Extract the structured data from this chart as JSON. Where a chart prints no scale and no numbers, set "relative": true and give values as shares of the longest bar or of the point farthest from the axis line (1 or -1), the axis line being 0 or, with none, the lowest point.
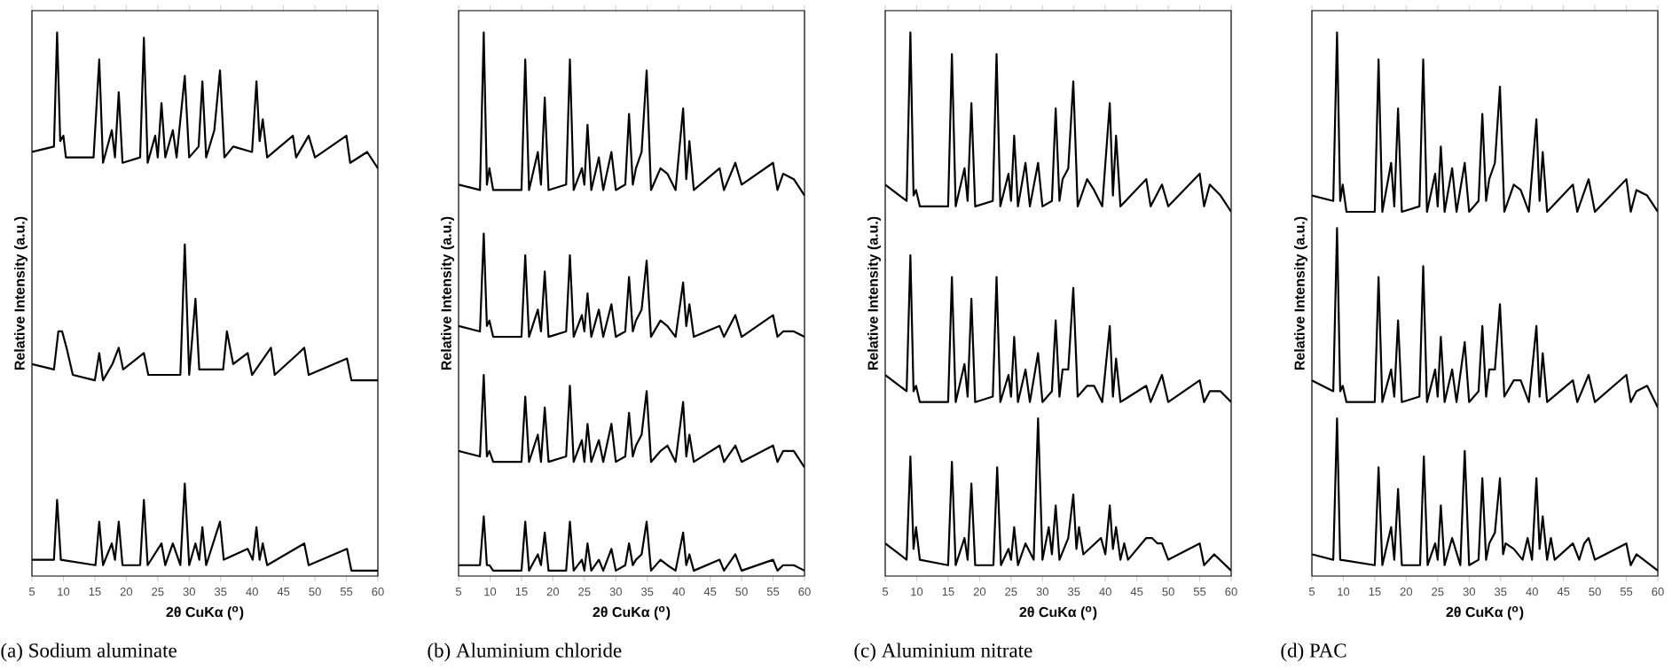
{
  "chart_data": [
    {
      "type": "line",
      "title": "(a) Sodium aluminate",
      "xlabel": "2θ CuKα ($^{o}$)",
      "ylabel": "Relative Intensity (a.u.)",
      "relative": true,
      "xlim": [
        5,
        60
      ],
      "xticks": [
        5,
        10,
        15,
        20,
        25,
        30,
        35,
        40,
        45,
        50,
        55,
        60
      ],
      "marker": "none",
      "line_style": "solid",
      "series": [
        {
          "color": "#000000",
          "x": [
            5,
            8.5,
            9.0,
            9.5,
            10.0,
            10.4,
            14.8,
            15.7,
            16.3,
            17.7,
            18.2,
            18.8,
            19.4,
            22.2,
            22.8,
            23.4,
            24.6,
            25.0,
            25.6,
            26.2,
            27.4,
            28.0,
            29.3,
            30.0,
            31.5,
            32.1,
            32.7,
            34.0,
            34.9,
            35.6,
            37.0,
            40.0,
            40.7,
            41.2,
            41.7,
            42.4,
            46.5,
            47.0,
            49.0,
            50,
            55.0,
            55.6,
            58.3,
            60
          ],
          "values": [
            0.78,
            0.79,
            1.0,
            0.8,
            0.81,
            0.77,
            0.77,
            0.95,
            0.76,
            0.82,
            0.77,
            0.89,
            0.76,
            0.77,
            0.99,
            0.76,
            0.81,
            0.77,
            0.87,
            0.77,
            0.82,
            0.77,
            0.92,
            0.77,
            0.79,
            0.91,
            0.77,
            0.82,
            0.93,
            0.77,
            0.79,
            0.78,
            0.91,
            0.8,
            0.84,
            0.77,
            0.81,
            0.77,
            0.81,
            0.77,
            0.81,
            0.76,
            0.78,
            0.75
          ]
        },
        {
          "color": "#000000",
          "x": [
            5,
            8.5,
            9.2,
            9.8,
            10.5,
            11.5,
            15.0,
            15.7,
            16.3,
            17.8,
            18.8,
            19.5,
            22.8,
            23.5,
            28.6,
            29.3,
            30.0,
            31.0,
            31.6,
            35.4,
            36.0,
            37.0,
            39.3,
            40.0,
            43.0,
            43.6,
            47.4,
            48.3,
            49.0,
            55.1,
            55.8,
            60
          ],
          "values": [
            0.39,
            0.38,
            0.45,
            0.45,
            0.42,
            0.37,
            0.36,
            0.41,
            0.36,
            0.39,
            0.42,
            0.38,
            0.41,
            0.37,
            0.37,
            0.61,
            0.37,
            0.51,
            0.38,
            0.38,
            0.45,
            0.39,
            0.41,
            0.37,
            0.42,
            0.37,
            0.41,
            0.42,
            0.37,
            0.4,
            0.36,
            0.36
          ]
        },
        {
          "color": "#000000",
          "x": [
            5,
            8.5,
            9.0,
            9.6,
            15.1,
            15.7,
            16.3,
            17.7,
            18.2,
            18.8,
            19.4,
            22.2,
            22.8,
            23.4,
            25.6,
            26.2,
            27.4,
            28.6,
            29.3,
            30.0,
            31.0,
            31.6,
            32.1,
            32.7,
            34.9,
            35.5,
            39.3,
            40.1,
            40.7,
            41.2,
            41.7,
            42.4,
            48.3,
            49.0,
            55.1,
            55.8,
            60
          ],
          "values": [
            0.03,
            0.03,
            0.14,
            0.03,
            0.02,
            0.1,
            0.02,
            0.06,
            0.03,
            0.1,
            0.02,
            0.02,
            0.14,
            0.02,
            0.06,
            0.02,
            0.06,
            0.02,
            0.17,
            0.02,
            0.06,
            0.03,
            0.09,
            0.02,
            0.1,
            0.03,
            0.05,
            0.03,
            0.09,
            0.03,
            0.06,
            0.02,
            0.06,
            0.02,
            0.05,
            0.01,
            0.01
          ]
        }
      ]
    },
    {
      "type": "line",
      "title": "(b) Aluminium chloride",
      "xlabel": "2θ CuKα ($^{o}$)",
      "ylabel": "Relative Intensity (a.u.)",
      "relative": true,
      "xlim": [
        5,
        60
      ],
      "xticks": [
        5,
        10,
        15,
        20,
        25,
        30,
        35,
        40,
        45,
        50,
        55,
        60
      ],
      "marker": "none",
      "line_style": "solid",
      "x": [
        5,
        8.4,
        9.0,
        9.5,
        9.9,
        10.5,
        15.0,
        15.6,
        16.2,
        17.6,
        18.1,
        18.7,
        19.3,
        22.1,
        22.7,
        23.3,
        24.6,
        25.0,
        25.5,
        26.1,
        27.3,
        28.0,
        29.3,
        30.0,
        31.5,
        32.1,
        32.7,
        33.2,
        34.1,
        34.9,
        35.6,
        37.1,
        38.2,
        39.5,
        40.7,
        41.2,
        41.7,
        42.4,
        46.5,
        47.2,
        49.0,
        50.0,
        55.0,
        55.7,
        56.6,
        58.3,
        60
      ],
      "series": [
        {
          "color": "#000000",
          "values": [
            0.72,
            0.71,
            1.0,
            0.72,
            0.75,
            0.71,
            0.71,
            0.95,
            0.71,
            0.78,
            0.72,
            0.88,
            0.71,
            0.72,
            0.95,
            0.71,
            0.75,
            0.72,
            0.83,
            0.71,
            0.77,
            0.71,
            0.78,
            0.71,
            0.72,
            0.85,
            0.72,
            0.75,
            0.78,
            0.93,
            0.71,
            0.75,
            0.74,
            0.71,
            0.86,
            0.73,
            0.8,
            0.71,
            0.75,
            0.71,
            0.76,
            0.72,
            0.76,
            0.71,
            0.74,
            0.73,
            0.7
          ]
        },
        {
          "color": "#000000",
          "values": [
            0.46,
            0.45,
            0.63,
            0.46,
            0.47,
            0.44,
            0.44,
            0.59,
            0.44,
            0.49,
            0.45,
            0.56,
            0.44,
            0.45,
            0.59,
            0.44,
            0.48,
            0.45,
            0.52,
            0.44,
            0.49,
            0.44,
            0.5,
            0.44,
            0.45,
            0.55,
            0.45,
            0.47,
            0.49,
            0.58,
            0.44,
            0.47,
            0.46,
            0.44,
            0.54,
            0.46,
            0.5,
            0.44,
            0.46,
            0.44,
            0.48,
            0.44,
            0.48,
            0.44,
            0.45,
            0.45,
            0.44
          ]
        },
        {
          "color": "#000000",
          "values": [
            0.23,
            0.22,
            0.37,
            0.22,
            0.23,
            0.21,
            0.21,
            0.33,
            0.21,
            0.26,
            0.21,
            0.31,
            0.21,
            0.22,
            0.35,
            0.21,
            0.25,
            0.21,
            0.28,
            0.21,
            0.25,
            0.21,
            0.28,
            0.21,
            0.22,
            0.3,
            0.22,
            0.24,
            0.26,
            0.34,
            0.21,
            0.23,
            0.24,
            0.21,
            0.32,
            0.22,
            0.26,
            0.21,
            0.24,
            0.21,
            0.24,
            0.21,
            0.24,
            0.21,
            0.23,
            0.23,
            0.2
          ]
        },
        {
          "color": "#000000",
          "values": [
            0.02,
            0.02,
            0.11,
            0.02,
            0.02,
            0.01,
            0.01,
            0.1,
            0.01,
            0.04,
            0.02,
            0.08,
            0.01,
            0.01,
            0.1,
            0.01,
            0.03,
            0.01,
            0.06,
            0.01,
            0.03,
            0.01,
            0.05,
            0.01,
            0.02,
            0.06,
            0.02,
            0.03,
            0.04,
            0.1,
            0.01,
            0.03,
            0.02,
            0.01,
            0.08,
            0.02,
            0.04,
            0.01,
            0.03,
            0.01,
            0.04,
            0.01,
            0.03,
            0.01,
            0.02,
            0.02,
            0.01
          ]
        }
      ]
    },
    {
      "type": "line",
      "title": "(c) Aluminium nitrate",
      "xlabel": "2θ CuKα ($^{o}$)",
      "ylabel": "Relative Intensity (a.u.)",
      "relative": true,
      "xlim": [
        5,
        60
      ],
      "xticks": [
        5,
        10,
        15,
        20,
        25,
        30,
        35,
        40,
        45,
        50,
        55,
        60
      ],
      "marker": "none",
      "line_style": "solid",
      "x": [
        5,
        8.4,
        9.0,
        9.5,
        9.9,
        10.5,
        15.0,
        15.6,
        16.2,
        17.6,
        18.1,
        18.7,
        19.3,
        22.1,
        22.7,
        23.3,
        24.6,
        25.0,
        25.5,
        26.1,
        27.3,
        28.0,
        29.3,
        30.0,
        31.5,
        32.1,
        32.7,
        33.2,
        34.1,
        34.9,
        35.6,
        37.1,
        38.2,
        39.5,
        40.7,
        41.2,
        41.7,
        42.4,
        46.5,
        47.2,
        49.0,
        50.0,
        55.0,
        55.7,
        56.6,
        58.3,
        60
      ],
      "series": [
        {
          "color": "#000000",
          "values": [
            0.72,
            0.69,
            1.0,
            0.7,
            0.71,
            0.68,
            0.68,
            0.96,
            0.68,
            0.75,
            0.69,
            0.87,
            0.68,
            0.69,
            0.96,
            0.68,
            0.74,
            0.69,
            0.81,
            0.68,
            0.76,
            0.68,
            0.76,
            0.68,
            0.69,
            0.86,
            0.69,
            0.73,
            0.75,
            0.91,
            0.68,
            0.73,
            0.71,
            0.68,
            0.87,
            0.7,
            0.81,
            0.68,
            0.73,
            0.68,
            0.72,
            0.68,
            0.74,
            0.68,
            0.72,
            0.7,
            0.67
          ]
        },
        {
          "color": "#000000",
          "values": [
            0.37,
            0.34,
            0.59,
            0.34,
            0.35,
            0.32,
            0.32,
            0.55,
            0.32,
            0.39,
            0.33,
            0.51,
            0.32,
            0.33,
            0.55,
            0.32,
            0.37,
            0.33,
            0.44,
            0.32,
            0.38,
            0.32,
            0.41,
            0.32,
            0.34,
            0.47,
            0.33,
            0.38,
            0.38,
            0.53,
            0.33,
            0.35,
            0.35,
            0.32,
            0.46,
            0.33,
            0.4,
            0.32,
            0.35,
            0.32,
            0.37,
            0.32,
            0.36,
            0.32,
            0.34,
            0.34,
            0.32
          ]
        },
        {
          "color": "#000000",
          "x": [
            5,
            8.4,
            9.0,
            9.5,
            9.9,
            10.5,
            15.0,
            15.6,
            16.2,
            17.6,
            18.1,
            18.7,
            19.3,
            22.2,
            22.8,
            23.4,
            24.6,
            25.0,
            25.5,
            26.1,
            27.3,
            28.6,
            29.3,
            30.0,
            31.0,
            31.5,
            32.1,
            32.7,
            34.1,
            34.9,
            35.4,
            35.8,
            36.5,
            39.3,
            40.0,
            40.7,
            41.2,
            41.7,
            42.4,
            43.0,
            43.6,
            46.5,
            47.4,
            48.3,
            49.0,
            50.0,
            55.0,
            55.7,
            57.3,
            60
          ],
          "values": [
            0.06,
            0.03,
            0.22,
            0.05,
            0.09,
            0.03,
            0.02,
            0.21,
            0.02,
            0.07,
            0.03,
            0.17,
            0.02,
            0.02,
            0.2,
            0.02,
            0.05,
            0.03,
            0.09,
            0.02,
            0.06,
            0.03,
            0.29,
            0.03,
            0.09,
            0.04,
            0.13,
            0.03,
            0.07,
            0.15,
            0.05,
            0.09,
            0.04,
            0.07,
            0.04,
            0.13,
            0.05,
            0.09,
            0.03,
            0.06,
            0.03,
            0.07,
            0.07,
            0.06,
            0.06,
            0.03,
            0.06,
            0.02,
            0.04,
            0.01
          ]
        }
      ]
    },
    {
      "type": "line",
      "title": "(d) PAC",
      "xlabel": "2θ CuKα ($^{o}$)",
      "ylabel": "Relative Intensity (a.u.)",
      "relative": true,
      "xlim": [
        5,
        60
      ],
      "xticks": [
        5,
        10,
        15,
        20,
        25,
        30,
        35,
        40,
        45,
        50,
        55,
        60
      ],
      "marker": "none",
      "line_style": "solid",
      "x": [
        5,
        8.4,
        9.0,
        9.5,
        9.9,
        10.5,
        15.0,
        15.6,
        16.2,
        17.6,
        18.1,
        18.7,
        19.3,
        22.1,
        22.7,
        23.3,
        24.6,
        25.0,
        25.5,
        26.1,
        27.3,
        28.0,
        29.3,
        30.0,
        31.5,
        32.1,
        32.7,
        33.2,
        34.1,
        34.9,
        35.6,
        37.1,
        38.2,
        39.5,
        40.7,
        41.2,
        41.7,
        42.4,
        46.5,
        47.2,
        49.0,
        50.0,
        55.0,
        55.7,
        56.6,
        58.3,
        60
      ],
      "series": [
        {
          "color": "#000000",
          "values": [
            0.7,
            0.69,
            1.0,
            0.69,
            0.72,
            0.67,
            0.67,
            0.95,
            0.67,
            0.76,
            0.68,
            0.86,
            0.67,
            0.68,
            0.95,
            0.67,
            0.74,
            0.68,
            0.79,
            0.67,
            0.75,
            0.67,
            0.76,
            0.67,
            0.69,
            0.85,
            0.69,
            0.73,
            0.76,
            0.9,
            0.67,
            0.72,
            0.71,
            0.67,
            0.84,
            0.69,
            0.78,
            0.67,
            0.72,
            0.67,
            0.73,
            0.67,
            0.73,
            0.67,
            0.71,
            0.7,
            0.67
          ]
        },
        {
          "color": "#000000",
          "values": [
            0.36,
            0.34,
            0.64,
            0.34,
            0.35,
            0.32,
            0.32,
            0.55,
            0.32,
            0.38,
            0.33,
            0.47,
            0.32,
            0.33,
            0.57,
            0.32,
            0.38,
            0.33,
            0.44,
            0.32,
            0.38,
            0.32,
            0.43,
            0.32,
            0.34,
            0.46,
            0.33,
            0.38,
            0.38,
            0.5,
            0.33,
            0.36,
            0.36,
            0.32,
            0.46,
            0.33,
            0.41,
            0.32,
            0.36,
            0.32,
            0.37,
            0.32,
            0.37,
            0.32,
            0.34,
            0.35,
            0.31
          ]
        },
        {
          "color": "#000000",
          "x": [
            5,
            8.4,
            9.0,
            9.5,
            15.0,
            15.6,
            16.2,
            17.6,
            18.1,
            18.7,
            19.3,
            22.2,
            22.8,
            23.4,
            24.6,
            25.0,
            25.5,
            26.1,
            27.3,
            28.6,
            29.3,
            30.0,
            31.5,
            32.1,
            32.7,
            33.2,
            34.1,
            34.9,
            35.4,
            35.8,
            37.1,
            38.5,
            39.3,
            40.0,
            40.7,
            41.2,
            41.7,
            42.4,
            43.0,
            43.6,
            46.5,
            47.5,
            48.3,
            49.0,
            50.0,
            55.0,
            55.7,
            56.6,
            60
          ],
          "values": [
            0.04,
            0.03,
            0.29,
            0.03,
            0.02,
            0.2,
            0.02,
            0.09,
            0.03,
            0.16,
            0.02,
            0.02,
            0.22,
            0.02,
            0.06,
            0.03,
            0.13,
            0.02,
            0.07,
            0.02,
            0.23,
            0.02,
            0.03,
            0.18,
            0.03,
            0.06,
            0.08,
            0.18,
            0.04,
            0.06,
            0.05,
            0.03,
            0.07,
            0.03,
            0.18,
            0.05,
            0.11,
            0.03,
            0.07,
            0.03,
            0.06,
            0.03,
            0.06,
            0.07,
            0.03,
            0.06,
            0.02,
            0.04,
            0.01
          ]
        }
      ]
    }
  ]
}
